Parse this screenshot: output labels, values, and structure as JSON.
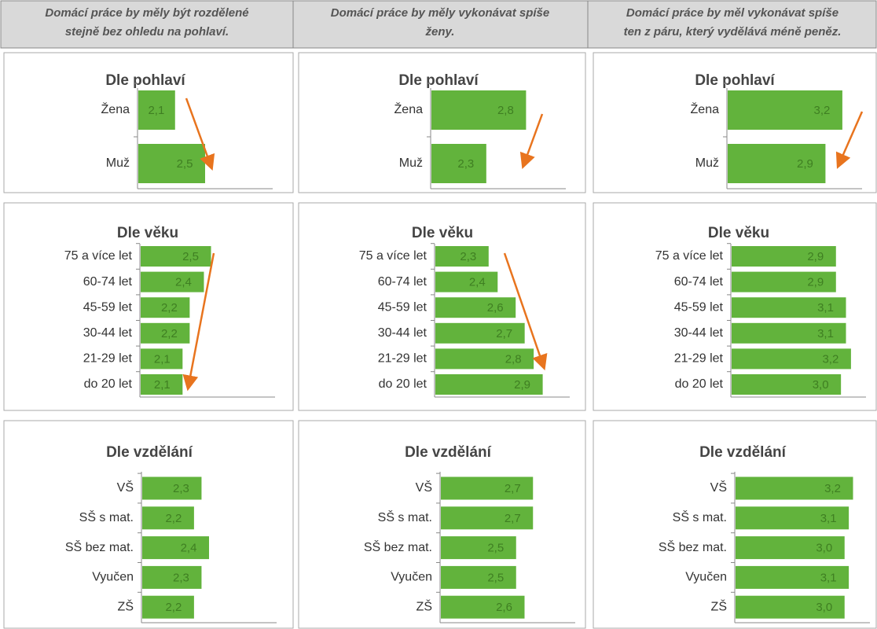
{
  "headers": [
    [
      "Domácí práce by měly být rozdělené",
      "stejně bez ohledu na pohlaví."
    ],
    [
      "Domácí práce by měly vykonávat spíše",
      "ženy."
    ],
    [
      "Domácí práce by měl vykonávat spíše",
      "ten z páru, který vydělává méně peněz."
    ]
  ],
  "chart_data": [
    {
      "type": "bar",
      "title": "Dle pohlaví",
      "categories": [
        "Žena",
        "Muž"
      ],
      "values": [
        2.1,
        2.5
      ],
      "value_labels": [
        "2,1",
        "2,5"
      ],
      "xlim": [
        1.6,
        3.4
      ],
      "color": "#62b33c"
    },
    {
      "type": "bar",
      "title": "Dle pohlaví",
      "categories": [
        "Žena",
        "Muž"
      ],
      "values": [
        2.8,
        2.3
      ],
      "value_labels": [
        "2,8",
        "2,3"
      ],
      "xlim": [
        1.6,
        3.3
      ],
      "color": "#62b33c"
    },
    {
      "type": "bar",
      "title": "Dle pohlaví",
      "categories": [
        "Žena",
        "Muž"
      ],
      "values": [
        3.2,
        2.9
      ],
      "value_labels": [
        "3,2",
        "2,9"
      ],
      "xlim": [
        1.15,
        3.55
      ],
      "color": "#62b33c"
    },
    {
      "type": "bar",
      "title": "Dle věku",
      "categories": [
        "75 a více let",
        "60-74 let",
        "45-59 let",
        "30-44 let",
        "21-29 let",
        "do 20 let"
      ],
      "values": [
        2.5,
        2.4,
        2.2,
        2.2,
        2.1,
        2.1
      ],
      "value_labels": [
        "2,5",
        "2,4",
        "2,2",
        "2,2",
        "2,1",
        "2,1"
      ],
      "xlim": [
        1.5,
        3.4
      ],
      "color": "#62b33c"
    },
    {
      "type": "bar",
      "title": "Dle věku",
      "categories": [
        "75 a více let",
        "60-74 let",
        "45-59 let",
        "30-44 let",
        "21-29 let",
        "do 20 let"
      ],
      "values": [
        2.3,
        2.4,
        2.6,
        2.7,
        2.8,
        2.9
      ],
      "value_labels": [
        "2,3",
        "2,4",
        "2,6",
        "2,7",
        "2,8",
        "2,9"
      ],
      "xlim": [
        1.7,
        3.2
      ],
      "color": "#62b33c"
    },
    {
      "type": "bar",
      "title": "Dle věku",
      "categories": [
        "75 a více let",
        "60-74 let",
        "45-59 let",
        "30-44 let",
        "21-29 let",
        "do 20 let"
      ],
      "values": [
        2.9,
        2.9,
        3.1,
        3.1,
        3.2,
        3.0
      ],
      "value_labels": [
        "2,9",
        "2,9",
        "3,1",
        "3,1",
        "3,2",
        "3,0"
      ],
      "xlim": [
        0.8,
        3.5
      ],
      "color": "#62b33c"
    },
    {
      "type": "bar",
      "title": "Dle vzdělání",
      "categories": [
        "VŠ",
        "SŠ s mat.",
        "SŠ bez mat.",
        "Vyučen",
        "ZŠ"
      ],
      "values": [
        2.3,
        2.2,
        2.4,
        2.3,
        2.2
      ],
      "value_labels": [
        "2,3",
        "2,2",
        "2,4",
        "2,3",
        "2,2"
      ],
      "xlim": [
        1.5,
        3.3
      ],
      "color": "#62b33c"
    },
    {
      "type": "bar",
      "title": "Dle vzdělání",
      "categories": [
        "VŠ",
        "SŠ s mat.",
        "SŠ bez mat.",
        "Vyučen",
        "ZŠ"
      ],
      "values": [
        2.7,
        2.7,
        2.5,
        2.5,
        2.6
      ],
      "value_labels": [
        "2,7",
        "2,7",
        "2,5",
        "2,5",
        "2,6"
      ],
      "xlim": [
        1.6,
        3.2
      ],
      "color": "#62b33c"
    },
    {
      "type": "bar",
      "title": "Dle vzdělání",
      "categories": [
        "VŠ",
        "SŠ s mat.",
        "SŠ bez mat.",
        "Vyučen",
        "ZŠ"
      ],
      "values": [
        3.2,
        3.1,
        3.0,
        3.1,
        3.0
      ],
      "value_labels": [
        "3,2",
        "3,1",
        "3,0",
        "3,1",
        "3,0"
      ],
      "xlim": [
        0.4,
        3.6
      ],
      "color": "#62b33c"
    }
  ]
}
